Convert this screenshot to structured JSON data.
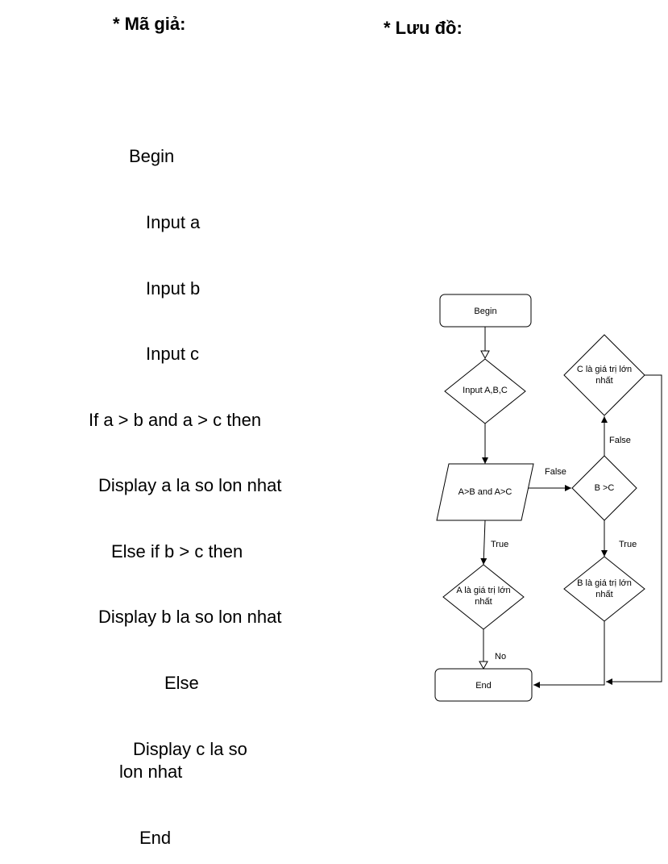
{
  "headers": {
    "pseudocode": "* Mã giả:",
    "flowchart": "* Lưu đồ:"
  },
  "pseudocode_lines": [
    "Begin",
    "Input a",
    "Input b",
    "Input c",
    "If a > b and a > c then",
    "Display a la so lon nhat",
    "Else if b > c then",
    "Display b la so lon nhat",
    "Else",
    "Display c la so",
    "lon nhat",
    "End"
  ],
  "flowchart": {
    "nodes": {
      "begin": "Begin",
      "input": "Input  A,B,C",
      "cond1": "A>B and A>C",
      "cond2": "B >C",
      "a_max_1": "A là giá trị lớn",
      "a_max_2": "nhất",
      "b_max_1": "B là giá trị lớn",
      "b_max_2": "nhất",
      "c_max_1": "C là giá trị lớn",
      "c_max_2": "nhất",
      "end": "End"
    },
    "edge_labels": {
      "cond1_false": "False",
      "cond1_true": "True",
      "cond2_false": "False",
      "cond2_true": "True",
      "a_no": "No"
    }
  }
}
